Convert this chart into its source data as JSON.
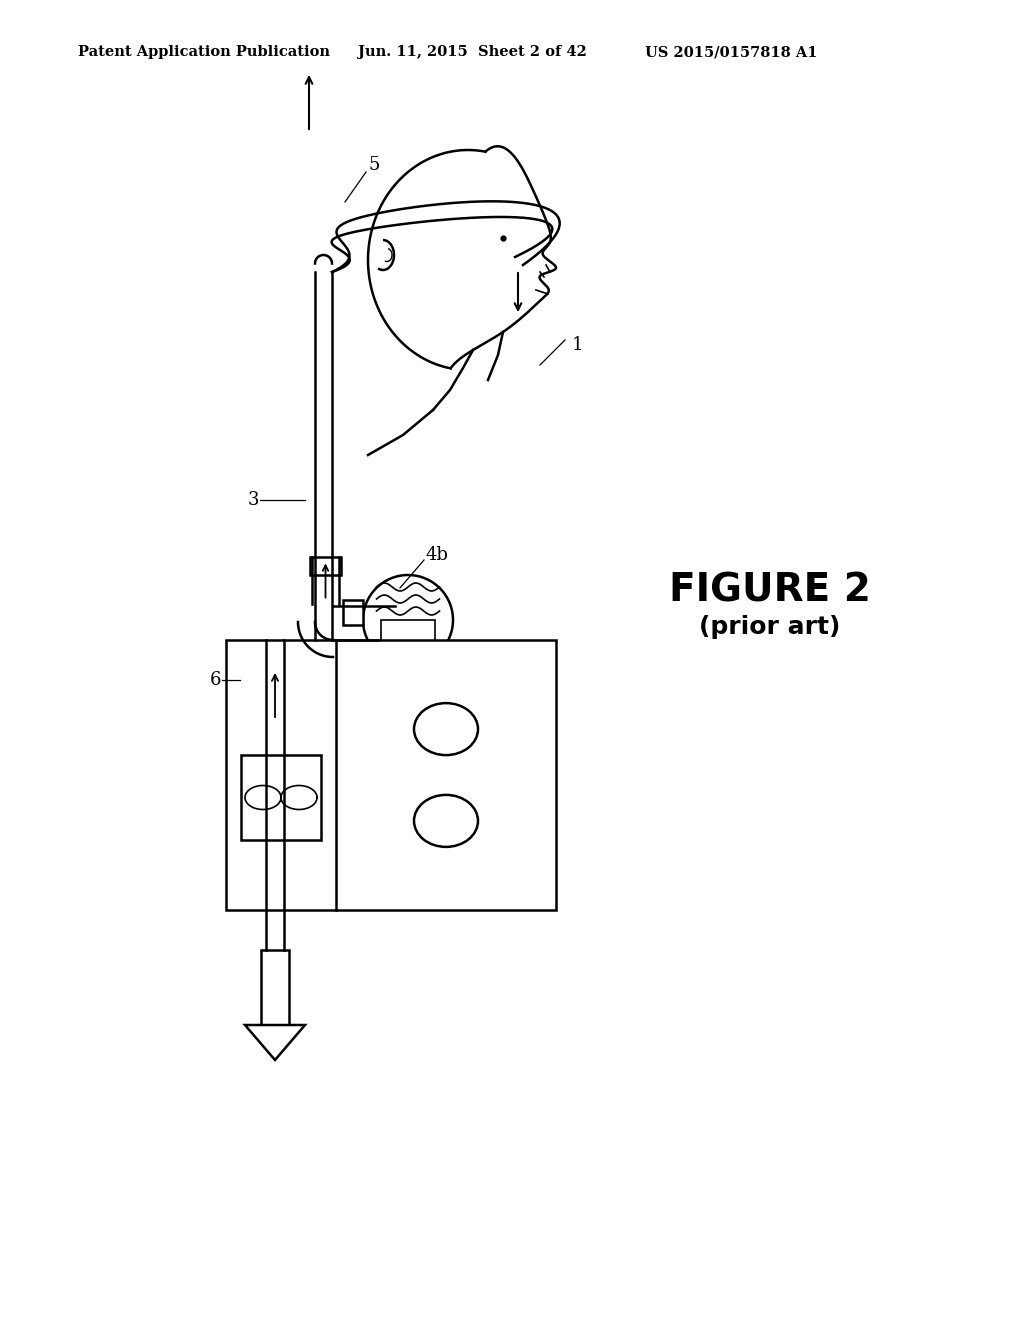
{
  "bg_color": "#ffffff",
  "header_left": "Patent Application Publication",
  "header_center": "Jun. 11, 2015  Sheet 2 of 42",
  "header_right": "US 2015/0157818 A1",
  "figure_label": "FIGURE 2",
  "figure_sublabel": "(prior art)",
  "label_1": "1",
  "label_3": "3",
  "label_4b": "4b",
  "label_5": "5",
  "label_6": "6"
}
